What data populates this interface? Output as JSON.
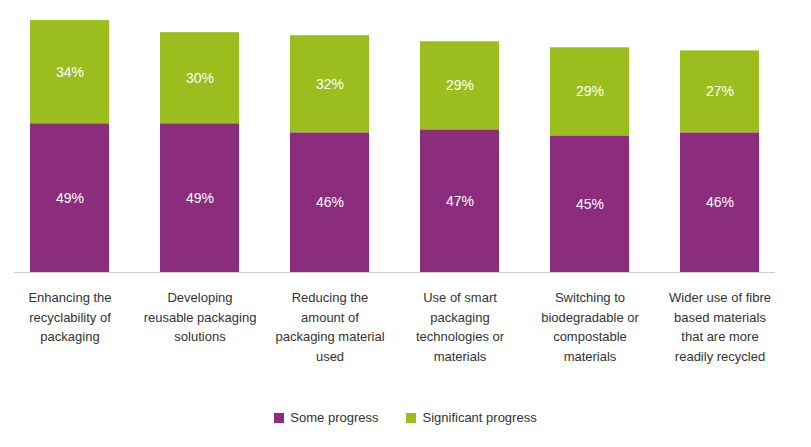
{
  "chart_data": {
    "type": "bar",
    "stacked": true,
    "data_labels": true,
    "tick_labels": "x",
    "legend": "bottom",
    "categories": [
      "Enhancing the recyclability of packaging",
      "Developing reusable packaging solutions",
      "Reducing the amount of packaging material used",
      "Use of smart packaging technologies or materials",
      "Switching to biodegradable or compostable materials",
      "Wider use of fibre based materials that are more readily recycled"
    ],
    "series": [
      {
        "name": "Some progress",
        "color": "#8C2C7D",
        "values": [
          49,
          49,
          46,
          47,
          45,
          46
        ],
        "value_labels": [
          "49%",
          "49%",
          "46%",
          "47%",
          "45%",
          "46%"
        ]
      },
      {
        "name": "Significant progress",
        "color": "#9CBD1E",
        "values": [
          34,
          30,
          32,
          29,
          29,
          27
        ],
        "value_labels": [
          "34%",
          "30%",
          "32%",
          "29%",
          "29%",
          "27%"
        ]
      }
    ],
    "ylim": [
      0,
      83
    ]
  }
}
